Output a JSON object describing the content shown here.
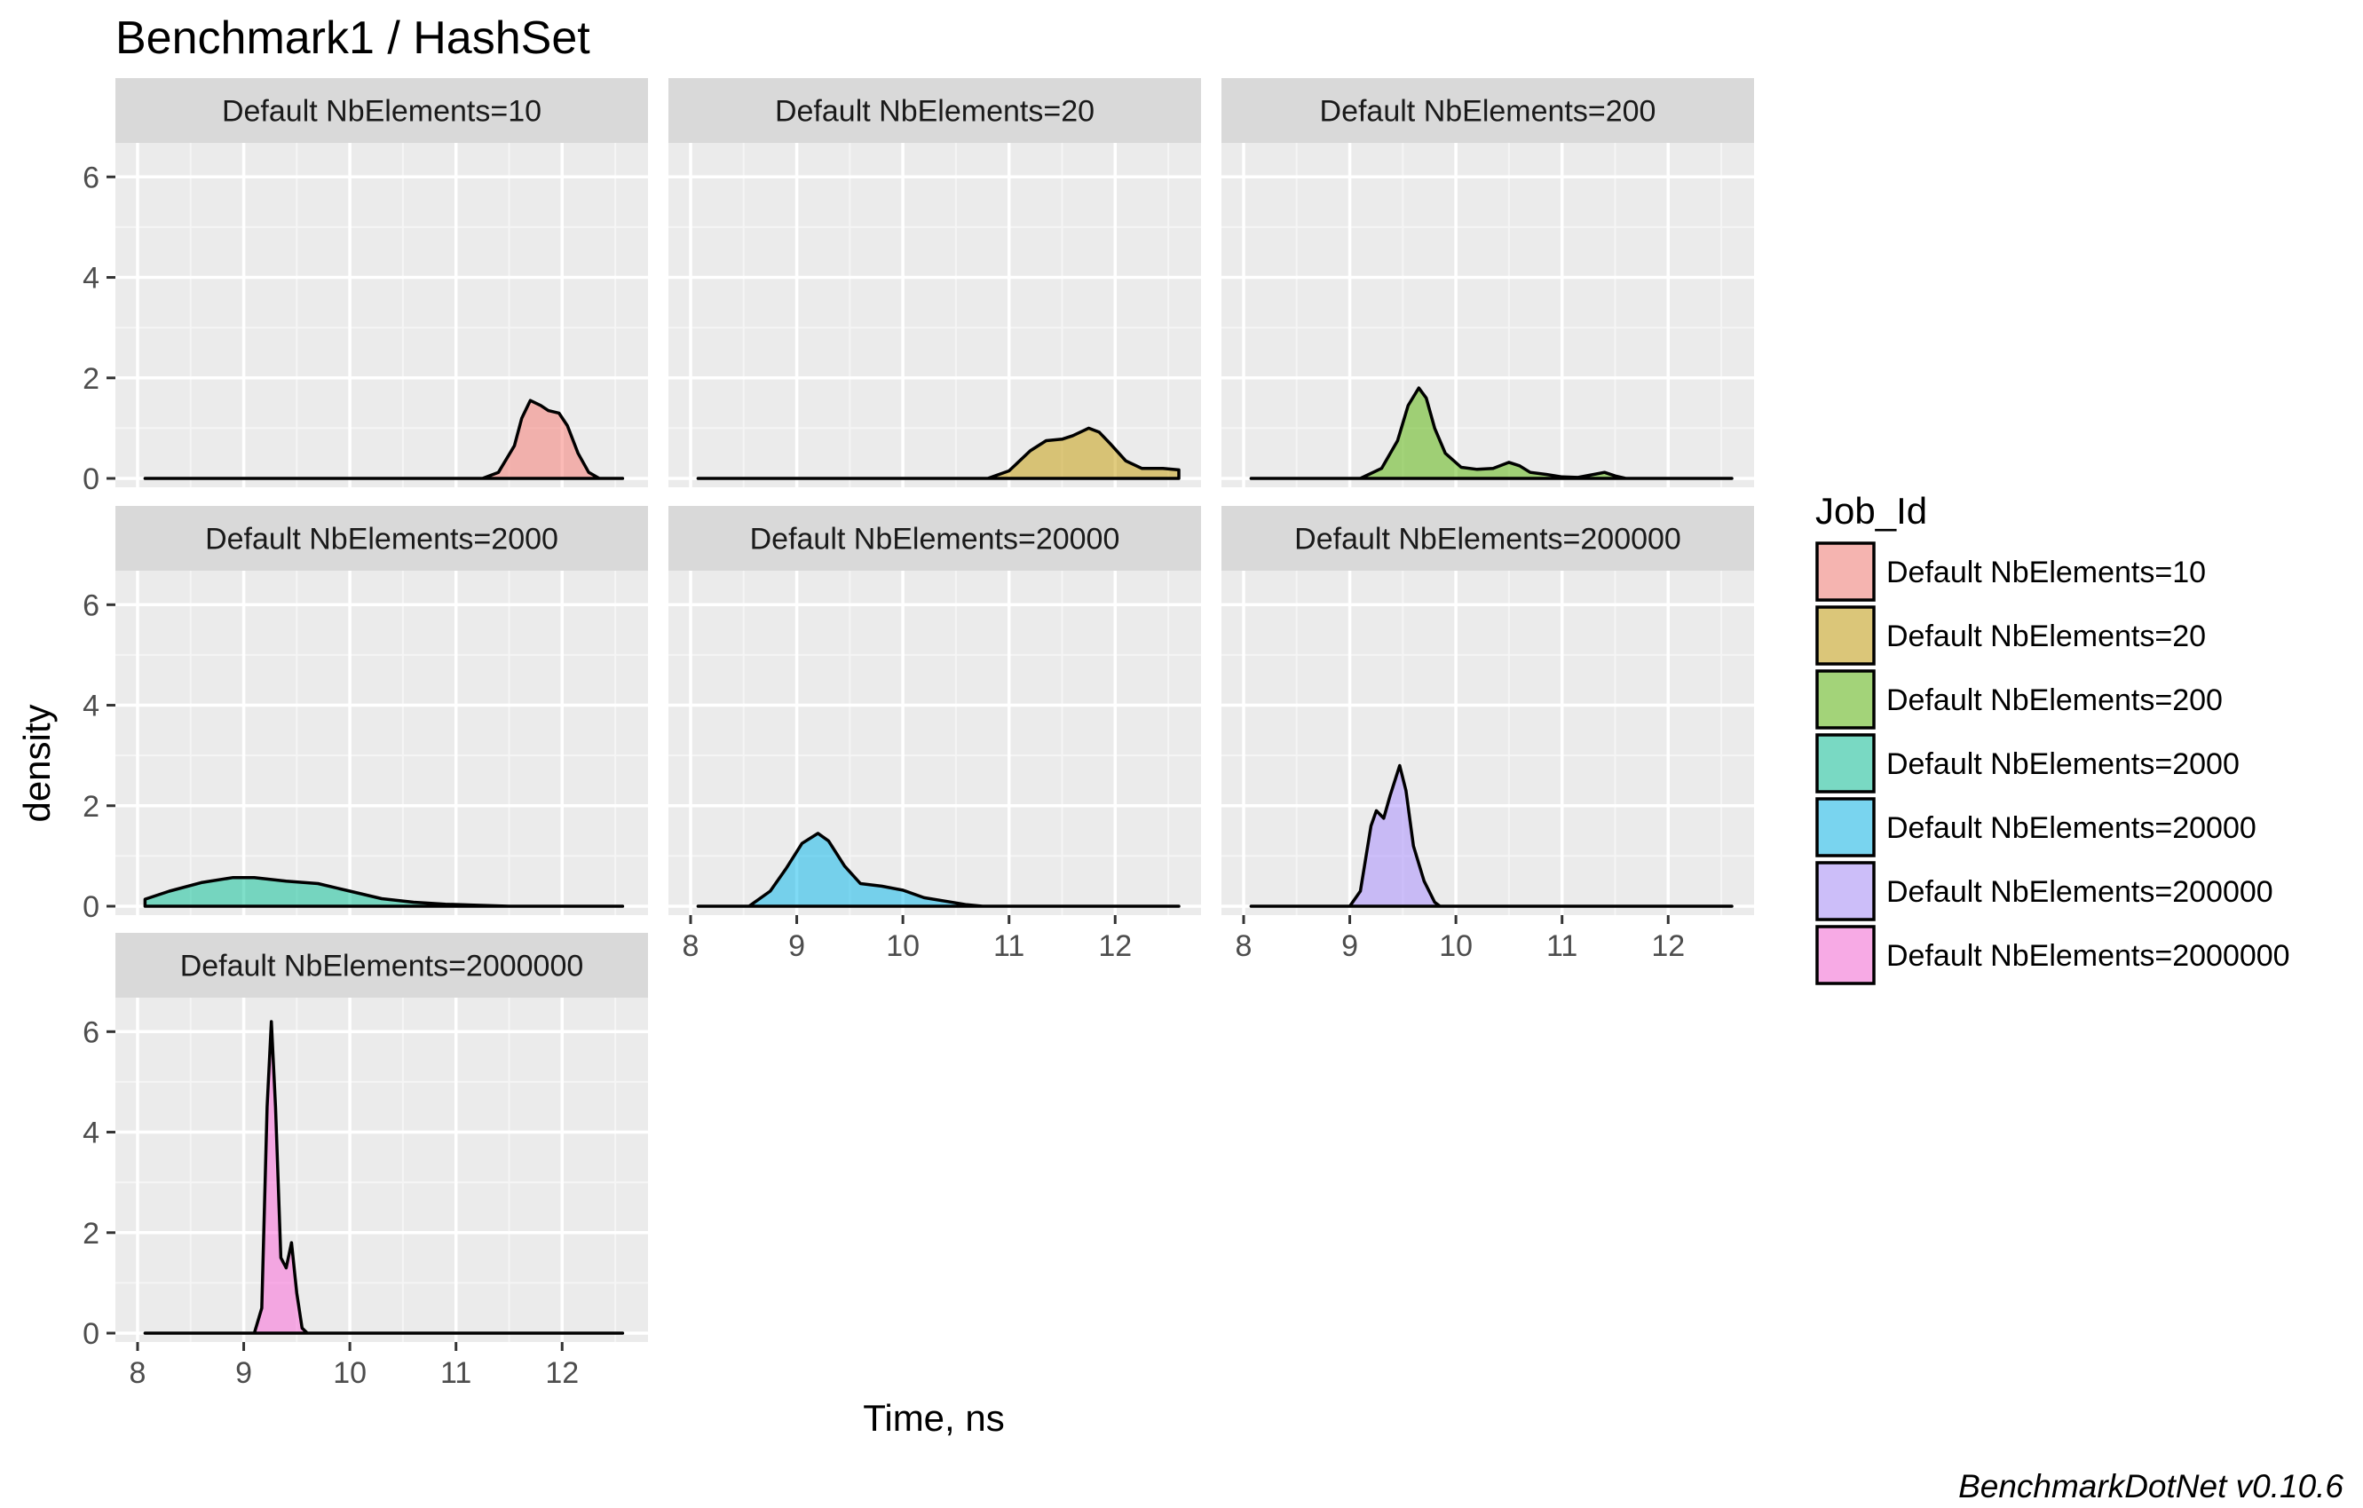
{
  "chart_data": {
    "type": "area",
    "title": "Benchmark1 / HashSet",
    "xlabel": "Time, ns",
    "ylabel": "density",
    "caption": "BenchmarkDotNet v0.10.6",
    "xlim": [
      8,
      12.6
    ],
    "ylim": [
      0,
      6.5
    ],
    "x_ticks": [
      "8",
      "9",
      "10",
      "11",
      "12"
    ],
    "y_ticks": [
      "0",
      "2",
      "4",
      "6"
    ],
    "grid": true,
    "legend": {
      "title": "Job_Id",
      "position": "right",
      "entries": [
        "Default NbElements=10",
        "Default NbElements=20",
        "Default NbElements=200",
        "Default NbElements=2000",
        "Default NbElements=20000",
        "Default NbElements=200000",
        "Default NbElements=2000000"
      ]
    },
    "series": [
      {
        "name": "Default NbElements=10",
        "color": "#F8766D",
        "x_range": [
          8.07,
          12.57
        ],
        "points": [
          [
            11.25,
            0
          ],
          [
            11.4,
            0.12
          ],
          [
            11.55,
            0.65
          ],
          [
            11.62,
            1.2
          ],
          [
            11.7,
            1.55
          ],
          [
            11.8,
            1.45
          ],
          [
            11.87,
            1.35
          ],
          [
            11.97,
            1.3
          ],
          [
            12.05,
            1.05
          ],
          [
            12.15,
            0.5
          ],
          [
            12.25,
            0.12
          ],
          [
            12.35,
            0
          ]
        ]
      },
      {
        "name": "Default NbElements=20",
        "color": "#C49A00",
        "x_range": [
          8.07,
          12.6
        ],
        "points": [
          [
            10.8,
            0
          ],
          [
            11.0,
            0.15
          ],
          [
            11.2,
            0.55
          ],
          [
            11.35,
            0.75
          ],
          [
            11.5,
            0.78
          ],
          [
            11.6,
            0.85
          ],
          [
            11.75,
            1.0
          ],
          [
            11.85,
            0.92
          ],
          [
            11.95,
            0.7
          ],
          [
            12.1,
            0.35
          ],
          [
            12.25,
            0.2
          ],
          [
            12.45,
            0.2
          ],
          [
            12.6,
            0.17
          ]
        ]
      },
      {
        "name": "Default NbElements=200",
        "color": "#53B400",
        "x_range": [
          8.07,
          12.6
        ],
        "points": [
          [
            9.1,
            0
          ],
          [
            9.3,
            0.2
          ],
          [
            9.45,
            0.75
          ],
          [
            9.55,
            1.45
          ],
          [
            9.65,
            1.8
          ],
          [
            9.72,
            1.6
          ],
          [
            9.8,
            1.0
          ],
          [
            9.9,
            0.5
          ],
          [
            10.05,
            0.22
          ],
          [
            10.2,
            0.18
          ],
          [
            10.35,
            0.2
          ],
          [
            10.5,
            0.32
          ],
          [
            10.6,
            0.25
          ],
          [
            10.7,
            0.12
          ],
          [
            10.85,
            0.08
          ],
          [
            11.0,
            0.03
          ],
          [
            11.15,
            0.02
          ],
          [
            11.3,
            0.08
          ],
          [
            11.4,
            0.12
          ],
          [
            11.5,
            0.05
          ],
          [
            11.6,
            0
          ]
        ]
      },
      {
        "name": "Default NbElements=2000",
        "color": "#00C094",
        "x_range": [
          8.07,
          12.57
        ],
        "points": [
          [
            8.07,
            0.14
          ],
          [
            8.3,
            0.3
          ],
          [
            8.6,
            0.47
          ],
          [
            8.9,
            0.57
          ],
          [
            9.1,
            0.57
          ],
          [
            9.4,
            0.5
          ],
          [
            9.7,
            0.45
          ],
          [
            10.0,
            0.3
          ],
          [
            10.3,
            0.15
          ],
          [
            10.6,
            0.08
          ],
          [
            10.9,
            0.04
          ],
          [
            11.2,
            0.02
          ],
          [
            11.5,
            0
          ]
        ]
      },
      {
        "name": "Default NbElements=20000",
        "color": "#00B6EB",
        "x_range": [
          8.07,
          12.6
        ],
        "points": [
          [
            8.55,
            0
          ],
          [
            8.75,
            0.3
          ],
          [
            8.9,
            0.75
          ],
          [
            9.05,
            1.25
          ],
          [
            9.2,
            1.45
          ],
          [
            9.3,
            1.3
          ],
          [
            9.45,
            0.8
          ],
          [
            9.6,
            0.45
          ],
          [
            9.8,
            0.4
          ],
          [
            10.0,
            0.32
          ],
          [
            10.2,
            0.17
          ],
          [
            10.4,
            0.1
          ],
          [
            10.6,
            0.03
          ],
          [
            10.75,
            0
          ]
        ]
      },
      {
        "name": "Default NbElements=200000",
        "color": "#A58AFF",
        "x_range": [
          8.07,
          12.6
        ],
        "points": [
          [
            9.0,
            0
          ],
          [
            9.1,
            0.3
          ],
          [
            9.2,
            1.6
          ],
          [
            9.25,
            1.9
          ],
          [
            9.32,
            1.75
          ],
          [
            9.38,
            2.2
          ],
          [
            9.47,
            2.8
          ],
          [
            9.53,
            2.3
          ],
          [
            9.6,
            1.2
          ],
          [
            9.7,
            0.5
          ],
          [
            9.8,
            0.08
          ],
          [
            9.85,
            0
          ]
        ]
      },
      {
        "name": "Default NbElements=2000000",
        "color": "#FB61D7",
        "x_range": [
          8.07,
          12.57
        ],
        "points": [
          [
            9.1,
            0
          ],
          [
            9.17,
            0.5
          ],
          [
            9.22,
            4.5
          ],
          [
            9.26,
            6.2
          ],
          [
            9.3,
            4.5
          ],
          [
            9.35,
            1.5
          ],
          [
            9.4,
            1.3
          ],
          [
            9.45,
            1.8
          ],
          [
            9.5,
            0.8
          ],
          [
            9.55,
            0.1
          ],
          [
            9.6,
            0
          ]
        ]
      }
    ]
  }
}
